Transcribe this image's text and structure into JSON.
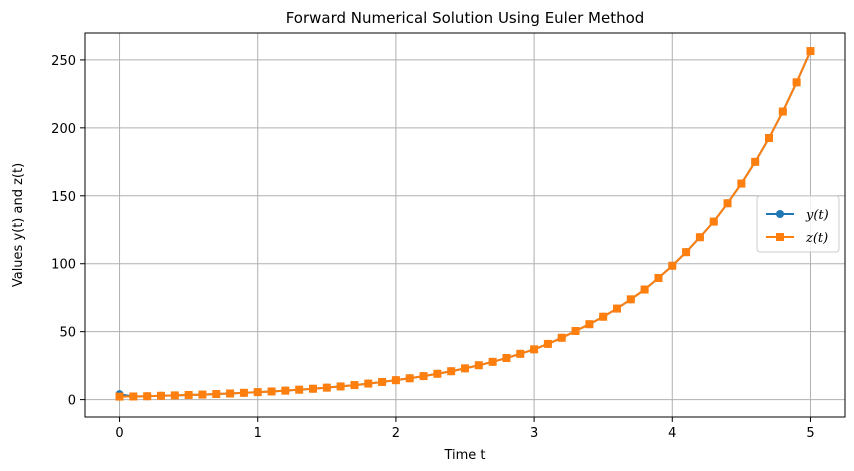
{
  "chart_data": {
    "type": "line",
    "title": "Forward Numerical Solution Using Euler Method",
    "xlabel": "Time t",
    "ylabel": "Values y(t) and z(t)",
    "xlim": [
      -0.25,
      5.25
    ],
    "ylim": [
      -12.8,
      269.8
    ],
    "x_ticks": [
      0,
      1,
      2,
      3,
      4,
      5
    ],
    "y_ticks": [
      0,
      50,
      100,
      150,
      200,
      250
    ],
    "grid": true,
    "legend_position": "center-right",
    "x": [
      0,
      0.1,
      0.2,
      0.3,
      0.4,
      0.5,
      0.6,
      0.7,
      0.8,
      0.9,
      1.0,
      1.1,
      1.2,
      1.3,
      1.4,
      1.5,
      1.6,
      1.7,
      1.8,
      1.9,
      2.0,
      2.1,
      2.2,
      2.3,
      2.4,
      2.5,
      2.6,
      2.7,
      2.8,
      2.9,
      3.0,
      3.1,
      3.2,
      3.3,
      3.4,
      3.5,
      3.6,
      3.7,
      3.8,
      3.9,
      4.0,
      4.1,
      4.2,
      4.3,
      4.4,
      4.5,
      4.6,
      4.7,
      4.8,
      4.9,
      5.0
    ],
    "series": [
      {
        "name": "y(t)",
        "color": "#1f77b4",
        "marker": "circle",
        "values": [
          4.0,
          2.3,
          2.5,
          2.8,
          3.1,
          3.4,
          3.7,
          4.1,
          4.5,
          5.0,
          5.5,
          6.0,
          6.6,
          7.3,
          8.0,
          8.8,
          9.7,
          10.7,
          11.8,
          13.0,
          14.3,
          15.7,
          17.3,
          19.0,
          20.9,
          23.0,
          25.3,
          27.8,
          30.6,
          33.7,
          37.0,
          41.0,
          45.5,
          50.5,
          55.5,
          61.0,
          67.0,
          73.8,
          81.0,
          89.5,
          98.5,
          108.5,
          119.5,
          131.0,
          144.5,
          159.0,
          175.0,
          192.5,
          212.0,
          233.5,
          256.5
        ]
      },
      {
        "name": "z(t)",
        "color": "#ff7f0e",
        "marker": "square",
        "values": [
          2.2,
          2.3,
          2.5,
          2.8,
          3.1,
          3.4,
          3.7,
          4.1,
          4.5,
          5.0,
          5.5,
          6.0,
          6.6,
          7.3,
          8.0,
          8.8,
          9.7,
          10.7,
          11.8,
          13.0,
          14.3,
          15.7,
          17.3,
          19.0,
          20.9,
          23.0,
          25.3,
          27.8,
          30.6,
          33.7,
          37.0,
          41.0,
          45.5,
          50.5,
          55.5,
          61.0,
          67.0,
          73.8,
          81.0,
          89.5,
          98.5,
          108.5,
          119.5,
          131.0,
          144.5,
          159.0,
          175.0,
          192.5,
          212.0,
          233.5,
          256.5
        ]
      }
    ]
  }
}
